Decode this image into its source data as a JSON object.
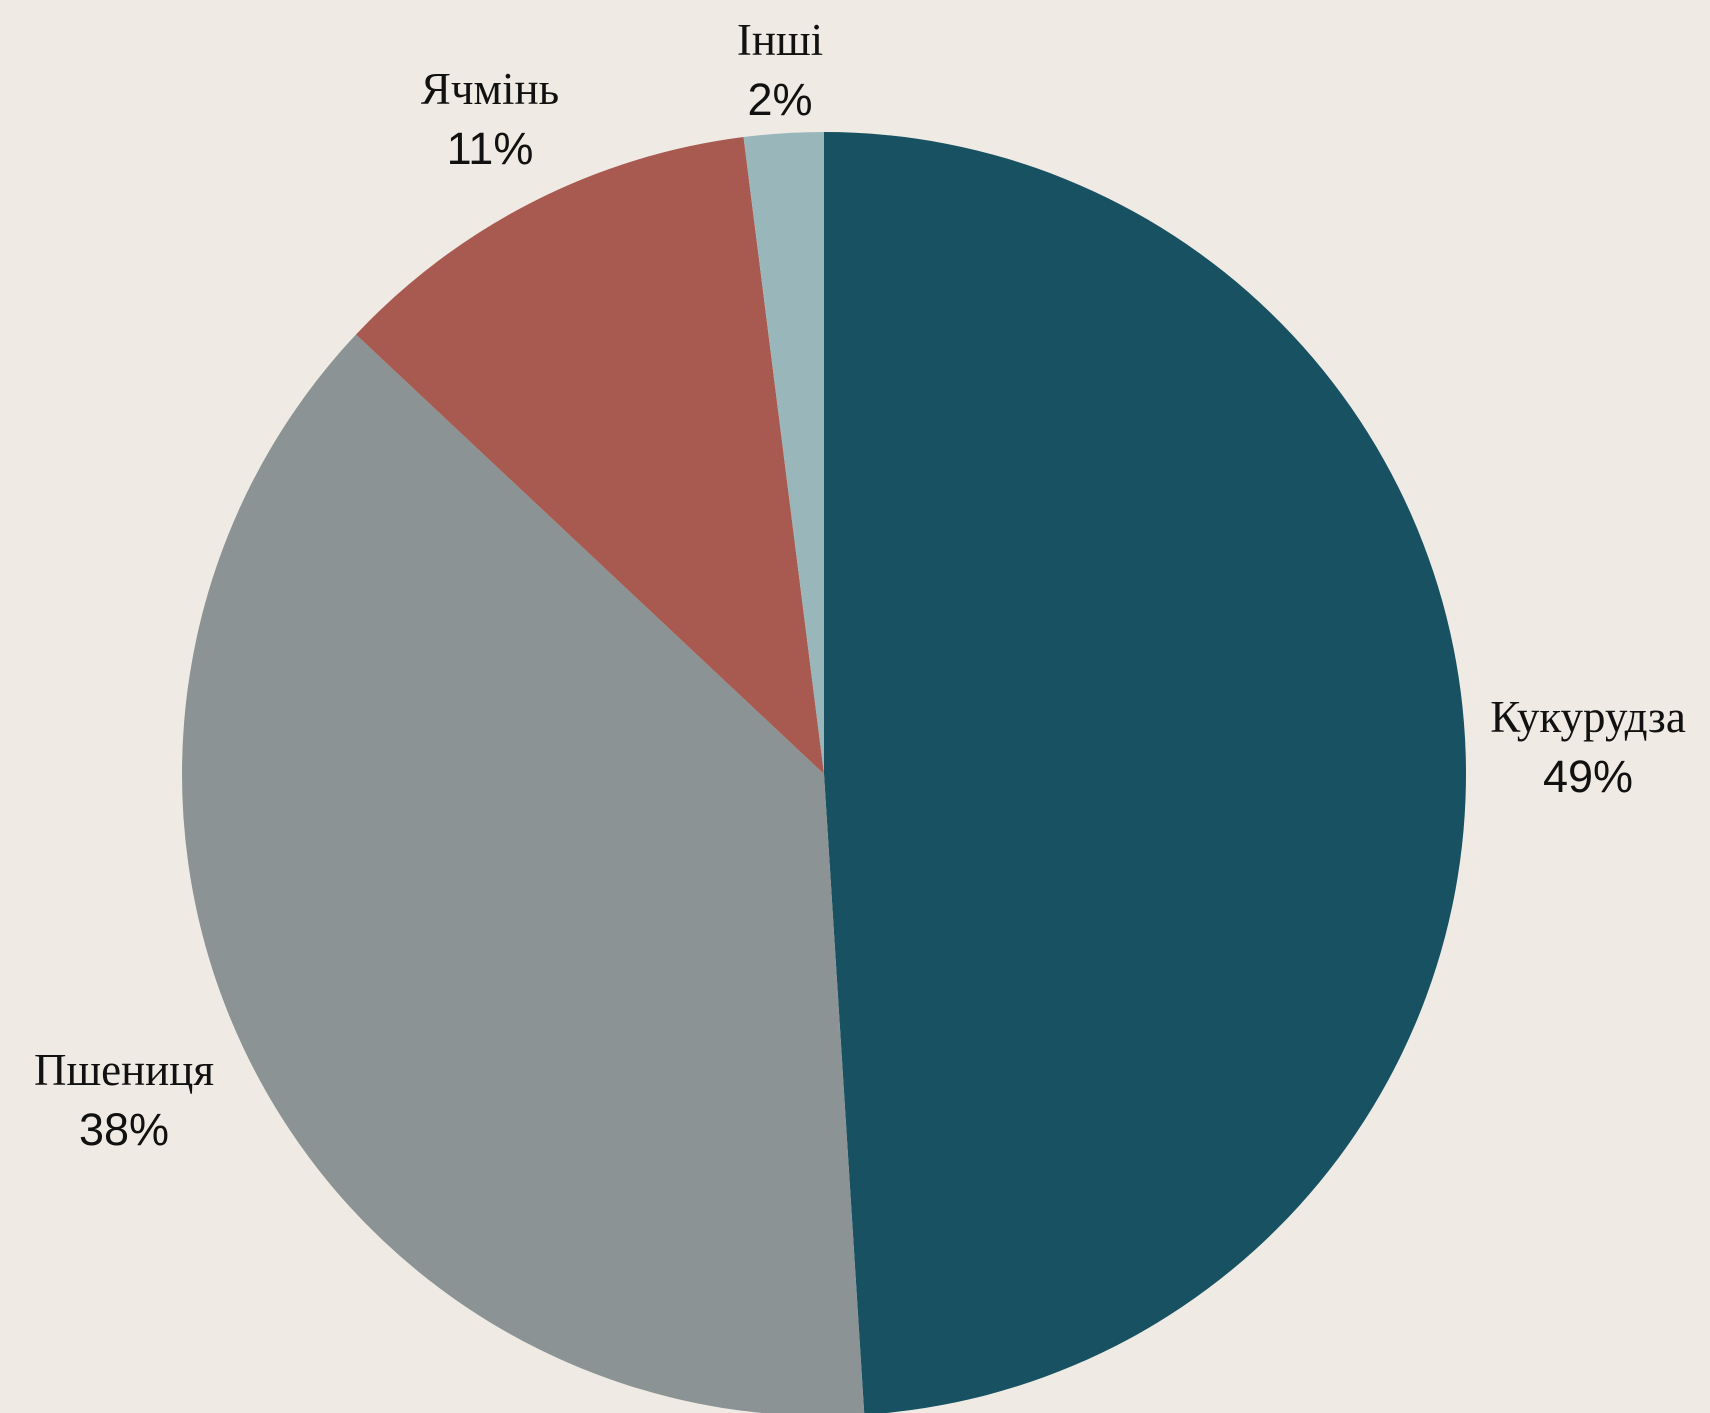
{
  "chart_data": {
    "type": "pie",
    "background": "#efebe4",
    "start_angle_deg": 0,
    "direction": "clockwise",
    "slices": [
      {
        "label": "Кукурудза",
        "value": 49,
        "value_label": "49%",
        "color": "#175162"
      },
      {
        "label": "Пшениця",
        "value": 38,
        "value_label": "38%",
        "color": "#8b9394"
      },
      {
        "label": "Ячмінь",
        "value": 11,
        "value_label": "11%",
        "color": "#a85a50"
      },
      {
        "label": "Інші",
        "value": 2,
        "value_label": "2%",
        "color": "#99b6ba"
      }
    ]
  }
}
